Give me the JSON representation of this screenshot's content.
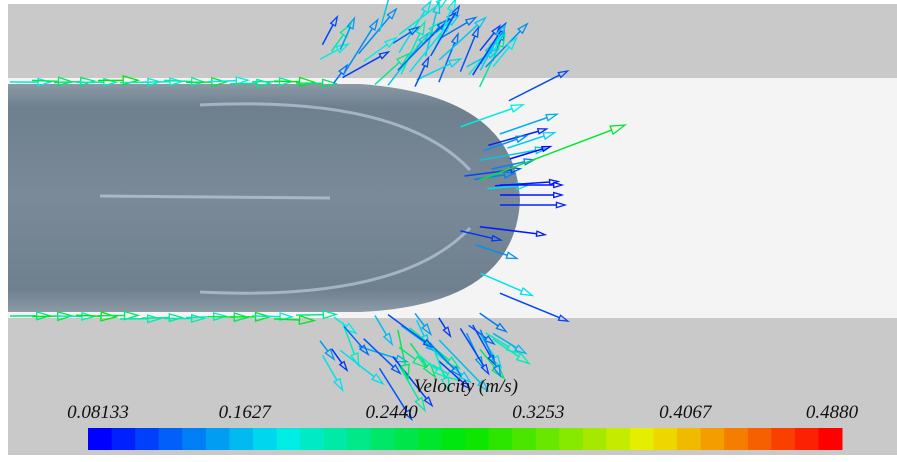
{
  "legend": {
    "title": "Velocity (m/s)",
    "ticks": [
      "0.08133",
      "0.1627",
      "0.2440",
      "0.3253",
      "0.4067",
      "0.4880"
    ]
  }
}
